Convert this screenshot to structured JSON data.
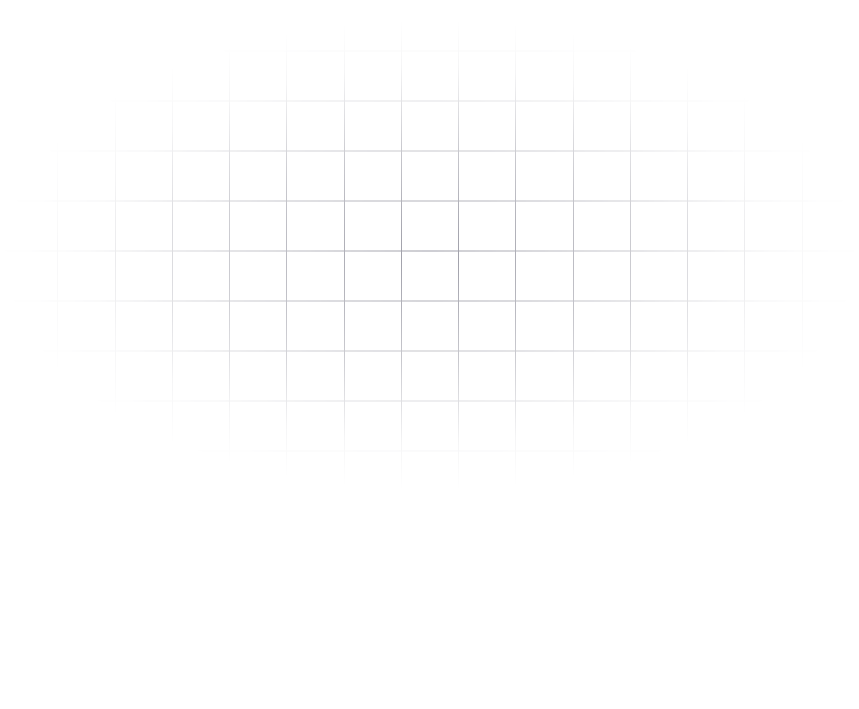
{
  "background": {
    "pattern": "grid",
    "fade": "radial",
    "line_color": "#9c9ca6",
    "background_color": "#ffffff",
    "columns": 15
  }
}
